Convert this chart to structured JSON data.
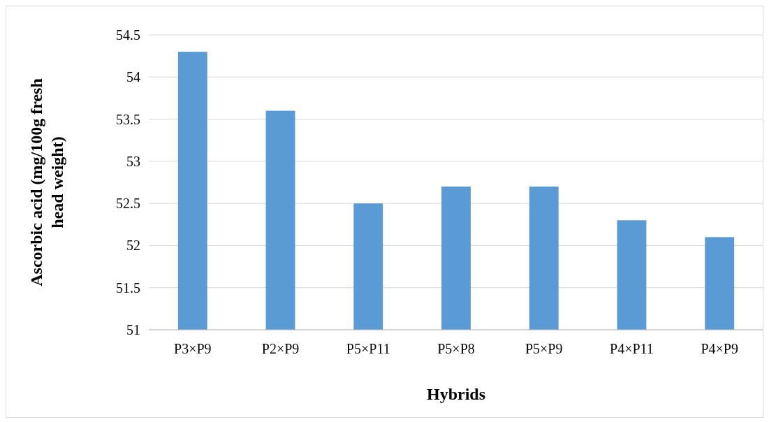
{
  "chart_data": {
    "type": "bar",
    "xlabel": "Hybrids",
    "ylabel": "Ascorbic acid (mg/100g fresh head weight)",
    "categories": [
      "P3×P9",
      "P2×P9",
      "P5×P11",
      "P5×P8",
      "P5×P9",
      "P4×P11",
      "P4×P9"
    ],
    "values": [
      54.3,
      53.6,
      52.5,
      52.7,
      52.7,
      52.3,
      52.1
    ],
    "color": "#5b9bd5",
    "ylim": [
      51,
      54.5
    ],
    "yticks": [
      51,
      51.5,
      52,
      52.5,
      53,
      53.5,
      54,
      54.5
    ],
    "grid": "y"
  }
}
